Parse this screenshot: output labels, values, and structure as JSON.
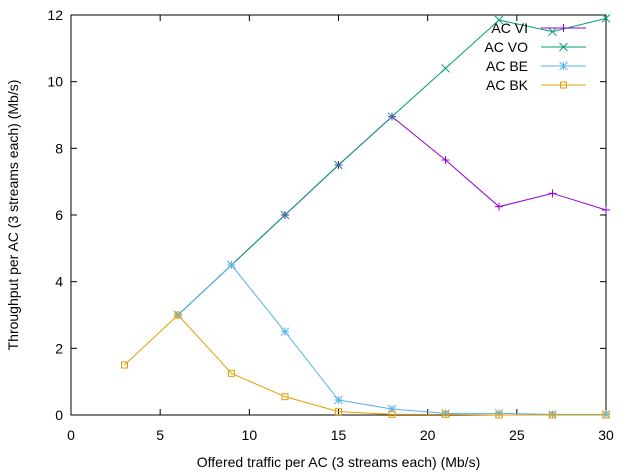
{
  "chart_data": {
    "type": "line",
    "title": "",
    "xlabel": "Offered traffic per AC (3 streams each) (Mb/s)",
    "ylabel": "Throughput per AC (3 streams each) (Mb/s)",
    "xlim": [
      0,
      30
    ],
    "ylim": [
      0,
      12
    ],
    "x_ticks": [
      0,
      5,
      10,
      15,
      20,
      25,
      30
    ],
    "y_ticks": [
      0,
      2,
      4,
      6,
      8,
      10,
      12
    ],
    "grid": false,
    "legend_position": "top-right",
    "series": [
      {
        "name": "AC VI",
        "color": "#9400d3",
        "marker": "plus",
        "x": [
          6,
          9,
          12,
          15,
          18,
          21,
          24,
          27,
          30
        ],
        "y": [
          3.0,
          4.5,
          6.0,
          7.5,
          8.95,
          7.65,
          6.25,
          6.65,
          6.15
        ]
      },
      {
        "name": "AC VO",
        "color": "#009e73",
        "marker": "cross",
        "x": [
          6,
          9,
          12,
          15,
          18,
          21,
          24,
          27,
          30
        ],
        "y": [
          3.0,
          4.5,
          6.0,
          7.5,
          8.95,
          10.4,
          11.85,
          11.5,
          11.9
        ]
      },
      {
        "name": "AC BE",
        "color": "#56b4e9",
        "marker": "star",
        "x": [
          6,
          9,
          12,
          15,
          18,
          21,
          24,
          27,
          30
        ],
        "y": [
          3.0,
          4.5,
          2.5,
          0.45,
          0.18,
          0.05,
          0.05,
          0.02,
          0.02
        ]
      },
      {
        "name": "AC BK",
        "color": "#e69f00",
        "marker": "square",
        "x": [
          3,
          6,
          9,
          12,
          15,
          18,
          21,
          24,
          27,
          30
        ],
        "y": [
          1.5,
          3.0,
          1.25,
          0.55,
          0.1,
          0.02,
          0.02,
          0.0,
          0.0,
          0.0
        ]
      }
    ]
  }
}
